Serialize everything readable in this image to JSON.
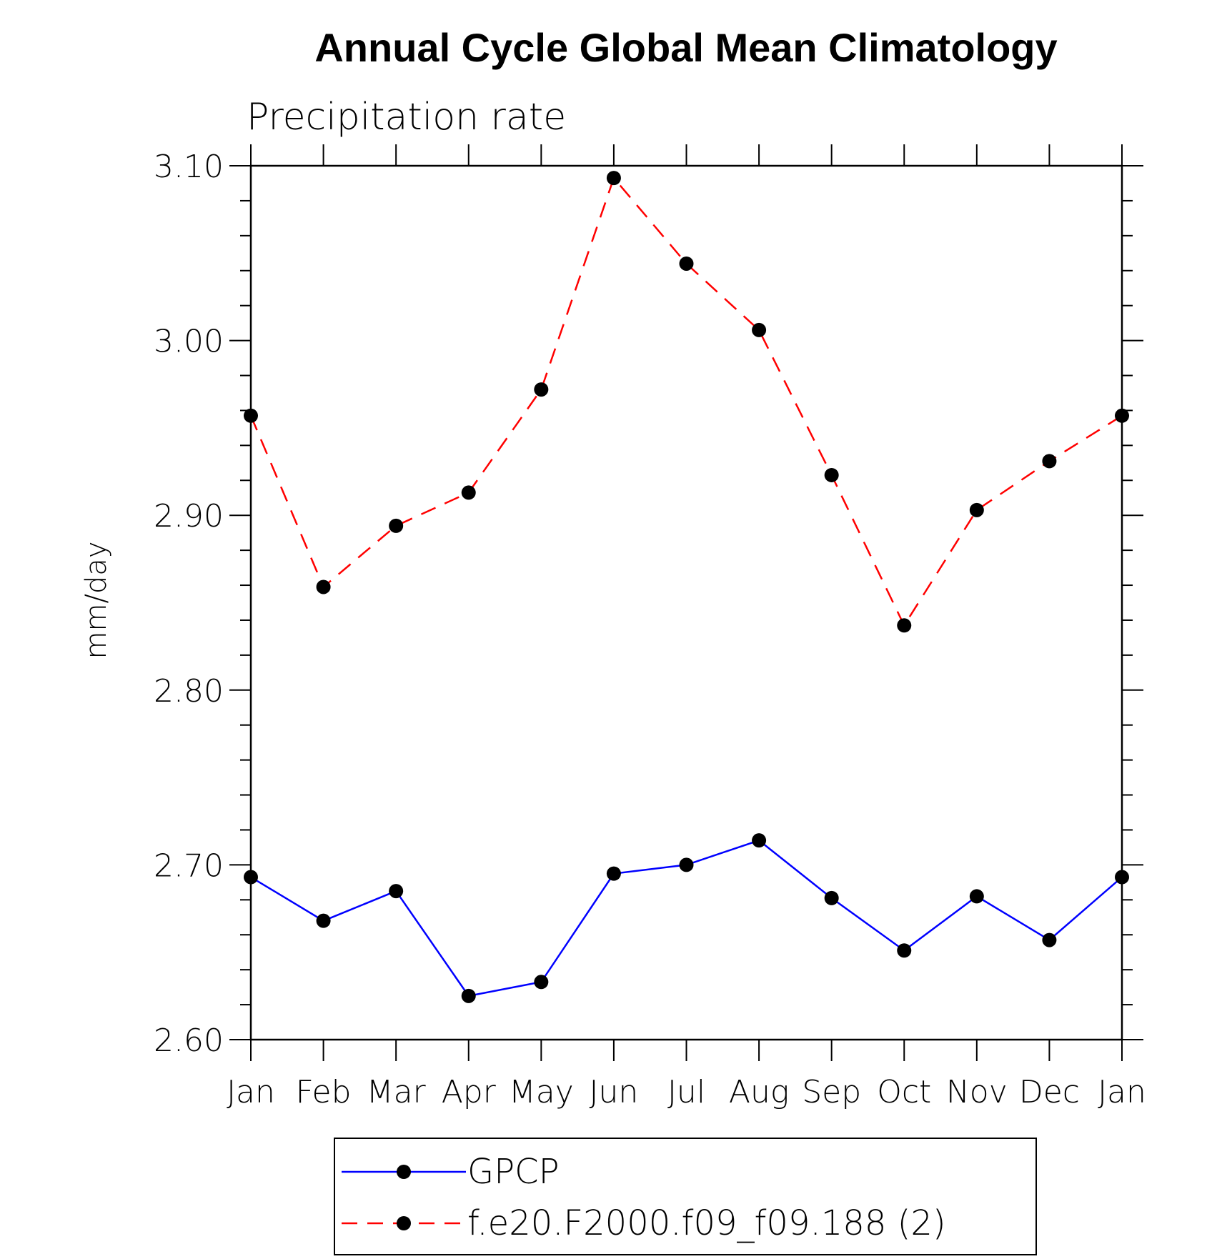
{
  "chart_data": {
    "type": "line",
    "title": "Annual Cycle Global Mean Climatology",
    "subtitle": "Precipitation rate",
    "xlabel": "",
    "ylabel": "mm/day",
    "categories": [
      "Jan",
      "Feb",
      "Mar",
      "Apr",
      "May",
      "Jun",
      "Jul",
      "Aug",
      "Sep",
      "Oct",
      "Nov",
      "Dec",
      "Jan"
    ],
    "ylim": [
      2.6,
      3.1
    ],
    "yticks": [
      "2.60",
      "2.70",
      "2.80",
      "2.90",
      "3.00",
      "3.10"
    ],
    "grid": false,
    "legend_position": "bottom",
    "series": [
      {
        "name": "GPCP",
        "color": "#0000ff",
        "dash": "solid",
        "values": [
          2.693,
          2.668,
          2.685,
          2.625,
          2.633,
          2.695,
          2.7,
          2.714,
          2.681,
          2.651,
          2.682,
          2.657,
          2.693
        ]
      },
      {
        "name": "f.e20.F2000.f09_f09.188 (2)",
        "color": "#ff0000",
        "dash": "dashed",
        "values": [
          2.957,
          2.859,
          2.894,
          2.913,
          2.972,
          3.093,
          3.044,
          3.006,
          2.923,
          2.837,
          2.903,
          2.931,
          2.957
        ]
      }
    ]
  }
}
